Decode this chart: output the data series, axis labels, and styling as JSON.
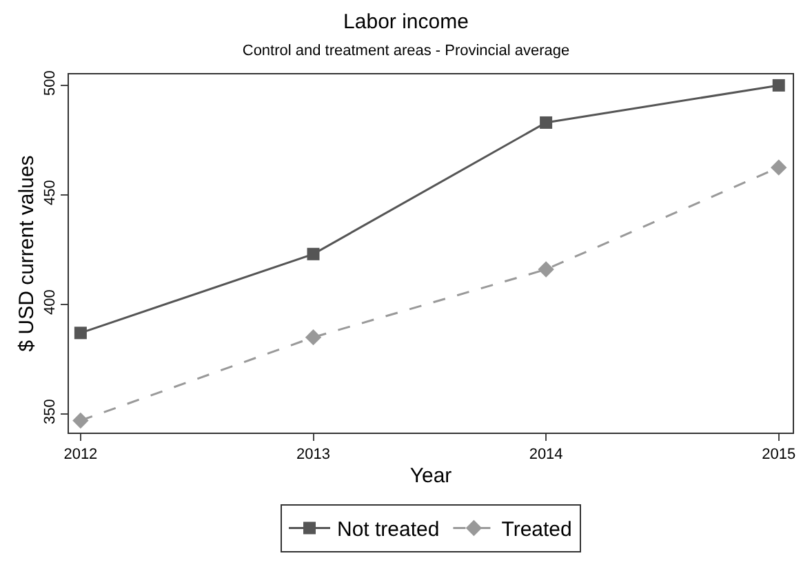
{
  "chart_data": {
    "type": "line",
    "title": "Labor income",
    "subtitle": "Control and treatment areas - Provincial average",
    "xlabel": "Year",
    "ylabel": "$ USD current values",
    "x": [
      2012,
      2013,
      2014,
      2015
    ],
    "series": [
      {
        "name": "Not treated",
        "color": "#555555",
        "values": [
          387,
          423,
          483,
          500
        ],
        "marker": "square",
        "line_style": "solid"
      },
      {
        "name": "Treated",
        "color": "#999999",
        "values": [
          347,
          385,
          416,
          462.5
        ],
        "marker": "diamond",
        "line_style": "dashed"
      }
    ],
    "xlim": [
      2011.95,
      2015.06
    ],
    "xticks": [
      2012,
      2013,
      2014,
      2015
    ],
    "ylim": [
      341.5,
      505
    ],
    "yticks": [
      350,
      400,
      450,
      500
    ],
    "grid": false,
    "legend": "bottom"
  }
}
